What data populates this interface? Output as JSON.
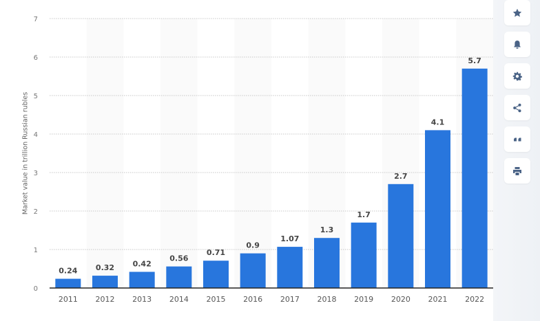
{
  "chart_data": {
    "type": "bar",
    "categories": [
      "2011",
      "2012",
      "2013",
      "2014",
      "2015",
      "2016",
      "2017",
      "2018",
      "2019",
      "2020",
      "2021",
      "2022"
    ],
    "values": [
      0.24,
      0.32,
      0.42,
      0.56,
      0.71,
      0.9,
      1.07,
      1.3,
      1.7,
      2.7,
      4.1,
      5.7
    ],
    "value_labels": [
      "0.24",
      "0.32",
      "0.42",
      "0.56",
      "0.71",
      "0.9",
      "1.07",
      "1.3",
      "1.7",
      "2.7",
      "4.1",
      "5.7"
    ],
    "ylabel": "Market value in trillion Russian rubles",
    "xlabel": "",
    "ylim": [
      0,
      7
    ],
    "yticks": [
      "0",
      "1",
      "2",
      "3",
      "4",
      "5",
      "6",
      "7"
    ],
    "grid": true,
    "bar_color": "#2876dd",
    "band_color": "#fafafa"
  },
  "toolbar": [
    {
      "icon": "star-icon",
      "name": "favorite-button"
    },
    {
      "icon": "bell-icon",
      "name": "notification-button"
    },
    {
      "icon": "gear-icon",
      "name": "settings-button"
    },
    {
      "icon": "share-icon",
      "name": "share-button"
    },
    {
      "icon": "quote-icon",
      "name": "cite-button"
    },
    {
      "icon": "print-icon",
      "name": "print-button"
    }
  ]
}
